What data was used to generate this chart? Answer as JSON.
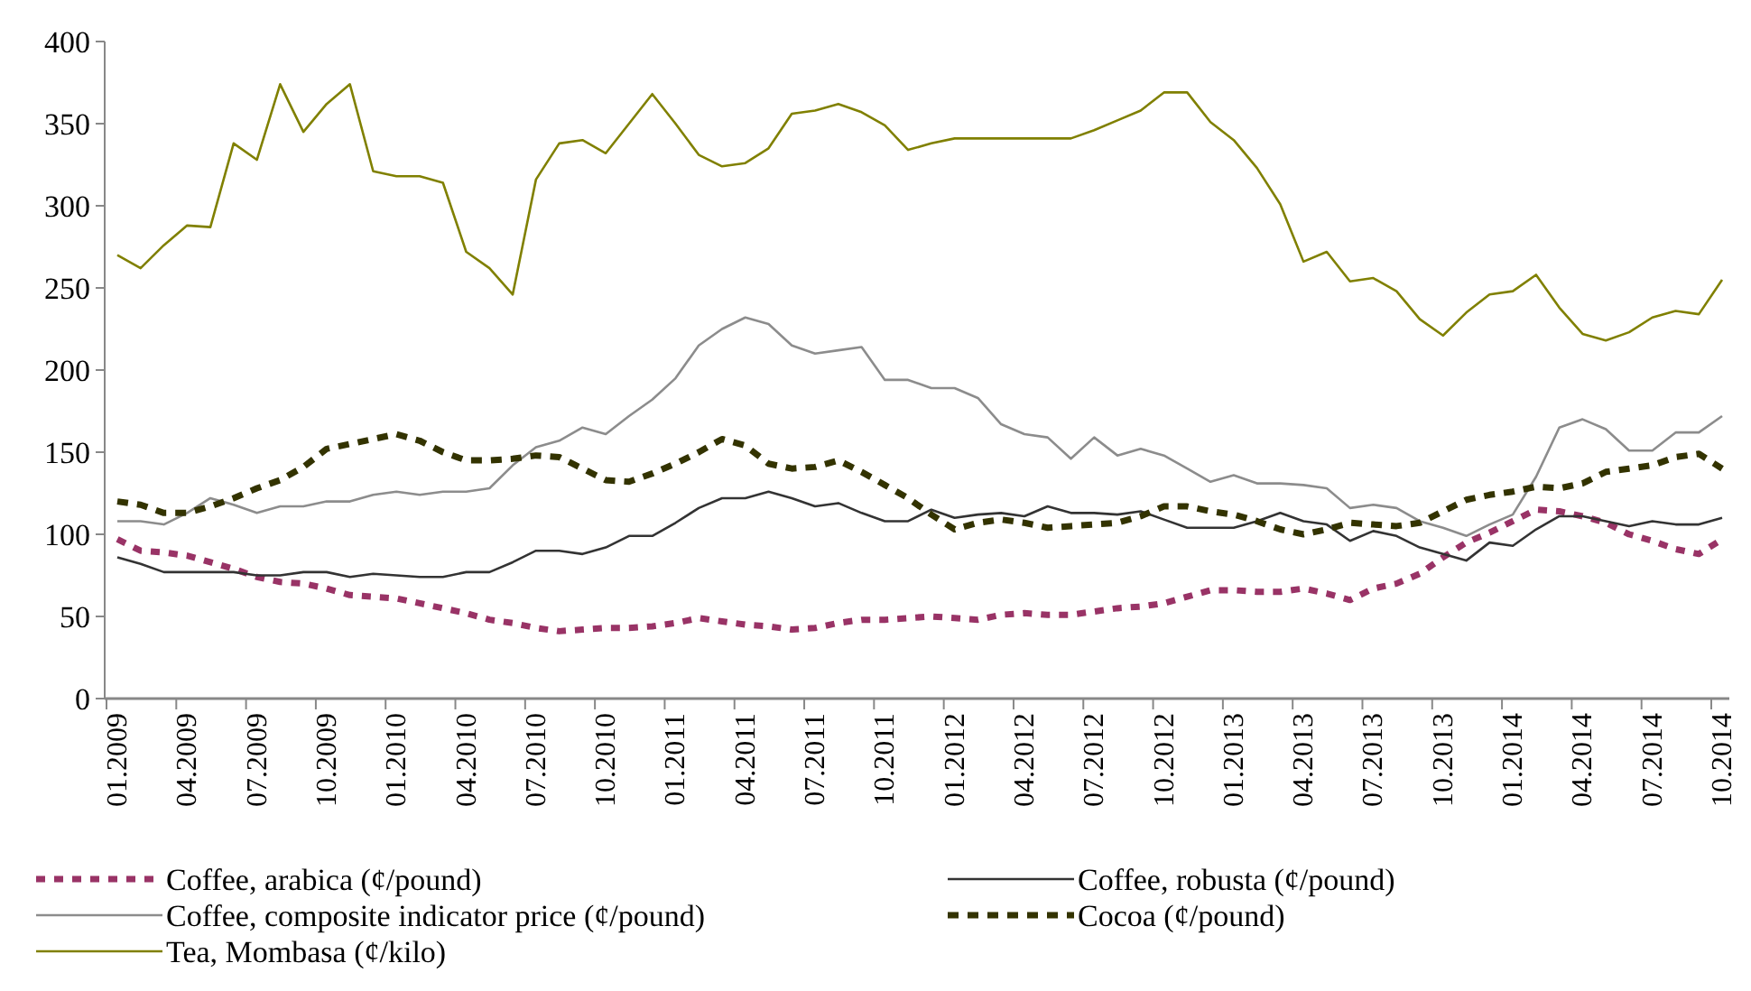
{
  "chart_data": {
    "type": "line",
    "categories": [
      "01.2009",
      null,
      null,
      "04.2009",
      null,
      null,
      "07.2009",
      null,
      null,
      "10.2009",
      null,
      null,
      "01.2010",
      null,
      null,
      "04.2010",
      null,
      null,
      "07.2010",
      null,
      null,
      "10.2010",
      null,
      null,
      "01.2011",
      null,
      null,
      "04.2011",
      null,
      null,
      "07.2011",
      null,
      null,
      "10.2011",
      null,
      null,
      "01.2012",
      null,
      null,
      "04.2012",
      null,
      null,
      "07.2012",
      null,
      null,
      "10.2012",
      null,
      null,
      "01.2013",
      null,
      null,
      "04.2013",
      null,
      null,
      "07.2013",
      null,
      null,
      "10.2013",
      null,
      null,
      "01.2014",
      null,
      null,
      "04.2014",
      null,
      null,
      "07.2014",
      null,
      null,
      "10.2014"
    ],
    "ylim": [
      0,
      400
    ],
    "yticks": [
      0,
      50,
      100,
      150,
      200,
      250,
      300,
      350,
      400
    ],
    "grid": false,
    "legend": "bottom",
    "marker": "none",
    "series": [
      {
        "name": "Coffee, arabica (¢/pound)",
        "color": "#993366",
        "line_style": "dashed",
        "values": [
          97,
          90,
          89,
          87,
          83,
          79,
          74,
          71,
          70,
          67,
          63,
          62,
          61,
          58,
          55,
          52,
          48,
          46,
          43,
          41,
          42,
          43,
          43,
          44,
          46,
          49,
          47,
          45,
          44,
          42,
          43,
          46,
          48,
          48,
          49,
          50,
          49,
          48,
          51,
          52,
          51,
          51,
          53,
          55,
          56,
          58,
          62,
          66,
          66,
          65,
          65,
          67,
          64,
          60,
          67,
          70,
          76,
          86,
          95,
          101,
          108,
          115,
          114,
          111,
          107,
          100,
          96,
          91,
          88,
          97
        ]
      },
      {
        "name": "Coffee, robusta (¢/pound)",
        "color": "#333333",
        "line_style": "solid",
        "values": [
          86,
          82,
          77,
          77,
          77,
          77,
          75,
          75,
          77,
          77,
          74,
          76,
          75,
          74,
          74,
          77,
          77,
          83,
          90,
          90,
          88,
          92,
          99,
          99,
          107,
          116,
          122,
          122,
          126,
          122,
          117,
          119,
          113,
          108,
          108,
          115,
          110,
          112,
          113,
          111,
          117,
          113,
          113,
          112,
          114,
          109,
          104,
          104,
          104,
          108,
          113,
          108,
          106,
          96,
          102,
          99,
          92,
          88,
          84,
          95,
          93,
          103,
          111,
          111,
          108,
          105,
          108,
          106,
          106,
          110
        ]
      },
      {
        "name": "Coffee, composite indicator price (¢/pound)",
        "color": "#8c8c8c",
        "line_style": "solid",
        "values": [
          108,
          108,
          106,
          113,
          122,
          118,
          113,
          117,
          117,
          120,
          120,
          124,
          126,
          124,
          126,
          126,
          128,
          142,
          153,
          157,
          165,
          161,
          172,
          182,
          195,
          215,
          225,
          232,
          228,
          215,
          210,
          212,
          214,
          194,
          194,
          189,
          189,
          183,
          167,
          161,
          159,
          146,
          159,
          148,
          152,
          148,
          140,
          132,
          136,
          131,
          131,
          130,
          128,
          116,
          118,
          116,
          108,
          104,
          99,
          106,
          112,
          135,
          165,
          170,
          164,
          151,
          151,
          162,
          162,
          172
        ]
      },
      {
        "name": "Cocoa (¢/pound)",
        "color": "#333300",
        "line_style": "dashed",
        "values": [
          120,
          118,
          113,
          113,
          117,
          122,
          128,
          133,
          141,
          152,
          155,
          158,
          161,
          157,
          150,
          145,
          145,
          146,
          148,
          147,
          140,
          133,
          132,
          137,
          143,
          150,
          158,
          154,
          143,
          140,
          141,
          145,
          138,
          130,
          122,
          112,
          103,
          107,
          109,
          107,
          104,
          105,
          106,
          107,
          111,
          117,
          117,
          114,
          112,
          108,
          103,
          100,
          103,
          107,
          106,
          105,
          107,
          114,
          121,
          124,
          126,
          129,
          128,
          131,
          138,
          140,
          142,
          147,
          149,
          140
        ]
      },
      {
        "name": "Tea, Mombasa (¢/kilo)",
        "color": "#808000",
        "line_style": "solid",
        "values": [
          270,
          262,
          276,
          288,
          287,
          338,
          328,
          374,
          345,
          362,
          374,
          321,
          318,
          318,
          314,
          272,
          262,
          246,
          316,
          338,
          340,
          332,
          350,
          368,
          350,
          331,
          324,
          326,
          335,
          356,
          358,
          362,
          357,
          349,
          334,
          338,
          341,
          341,
          341,
          341,
          341,
          341,
          346,
          352,
          358,
          369,
          369,
          351,
          340,
          323,
          301,
          266,
          272,
          254,
          256,
          248,
          231,
          221,
          235,
          246,
          248,
          258,
          238,
          222,
          218,
          223,
          232,
          236,
          234,
          255
        ]
      }
    ]
  }
}
